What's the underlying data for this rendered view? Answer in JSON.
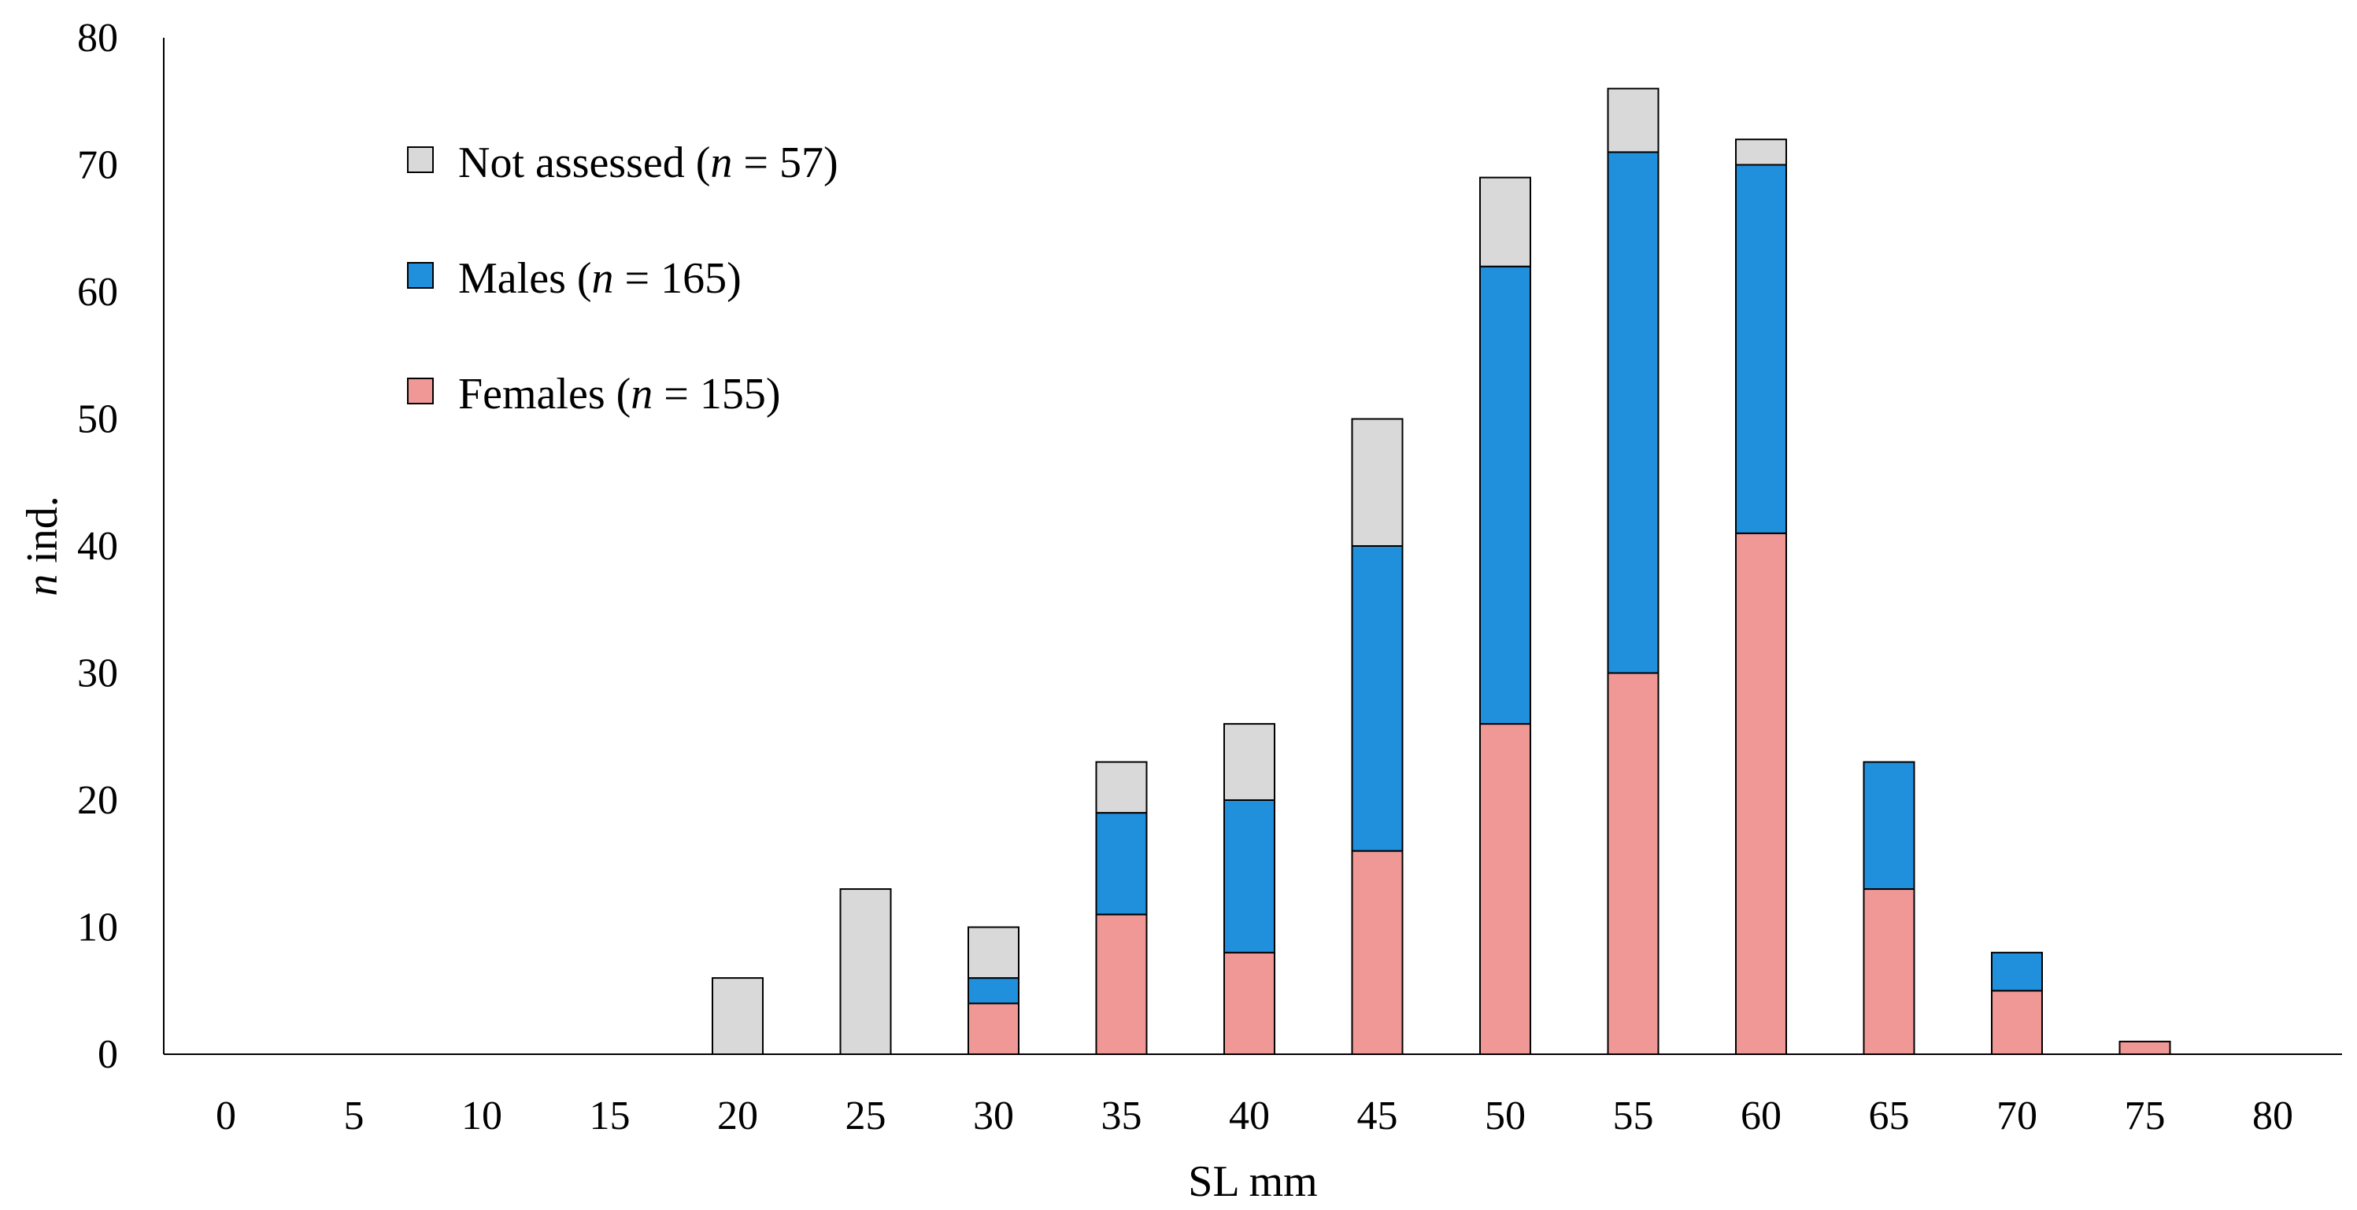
{
  "chart_data": {
    "type": "bar",
    "stacked": true,
    "categories": [
      "0",
      "5",
      "10",
      "15",
      "20",
      "25",
      "30",
      "35",
      "40",
      "45",
      "50",
      "55",
      "60",
      "65",
      "70",
      "75",
      "80"
    ],
    "series": [
      {
        "key": "females",
        "color": "#f09896",
        "values": [
          0,
          0,
          0,
          0,
          0,
          0,
          4,
          11,
          8,
          16,
          26,
          30,
          41,
          13,
          5,
          1,
          0
        ]
      },
      {
        "key": "males",
        "color": "#208fdc",
        "values": [
          0,
          0,
          0,
          0,
          0,
          0,
          2,
          8,
          12,
          24,
          36,
          41,
          29,
          10,
          3,
          0,
          0
        ]
      },
      {
        "key": "not_assessed",
        "color": "#d9d9d9",
        "values": [
          0,
          0,
          0,
          0,
          6,
          13,
          4,
          4,
          6,
          10,
          7,
          5,
          2,
          0,
          0,
          0,
          0
        ]
      }
    ],
    "legend": [
      {
        "series": "not_assessed",
        "label": "Not assessed",
        "n_prefix": "(",
        "n_italic": "n",
        "n_suffix": " = 57)"
      },
      {
        "series": "males",
        "label": "Males",
        "n_prefix": "(",
        "n_italic": "n",
        "n_suffix": " = 165)"
      },
      {
        "series": "females",
        "label": "Females",
        "n_prefix": "(",
        "n_italic": "n",
        "n_suffix": " = 155)"
      }
    ],
    "xlabel": "SL mm",
    "ylabel_italic": "n",
    "ylabel_rest": " ind.",
    "ylim": [
      0,
      80
    ],
    "yticks": [
      0,
      10,
      20,
      30,
      40,
      50,
      60,
      70,
      80
    ],
    "legend_position": "top-left",
    "grid": false
  }
}
